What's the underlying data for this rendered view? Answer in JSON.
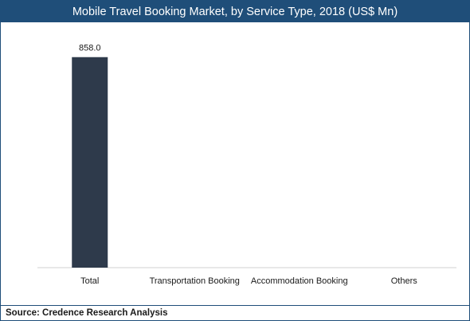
{
  "chart_data": {
    "type": "bar",
    "title": "Mobile Travel Booking Market, by Service Type, 2018 (US$ Mn)",
    "categories": [
      "Total",
      "Transportation Booking",
      "Accommodation Booking",
      "Others"
    ],
    "values": [
      858.0,
      null,
      null,
      null
    ],
    "data_labels": [
      "858.0",
      "",
      "",
      ""
    ],
    "xlabel": "",
    "ylabel": "",
    "ylim": [
      0,
      1000
    ],
    "grid": false,
    "legend": "none",
    "bar_color": "#2e3a4b"
  },
  "footer": {
    "source": "Source: Credence Research Analysis"
  },
  "colors": {
    "frame": "#1f4e79",
    "title_bg": "#1f4e79"
  }
}
